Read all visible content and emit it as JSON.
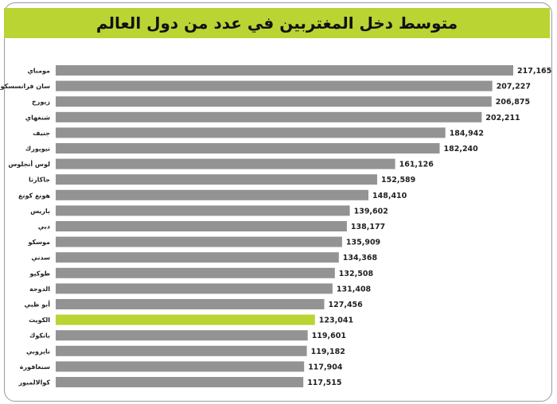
{
  "title": "متوسط دخل المغتربين في عدد من دول العالم",
  "colors": {
    "bar": "#939393",
    "highlight": "#b9d433",
    "title_bar": "#b9d433",
    "text": "#222222"
  },
  "chart_data": {
    "type": "bar",
    "orientation": "horizontal",
    "title": "متوسط دخل المغتربين في عدد من دول العالم",
    "xlabel": "",
    "ylabel": "",
    "xlim": [
      0,
      217165
    ],
    "grid": false,
    "legend": "none",
    "highlight_category": "الكويت",
    "categories": [
      "مومباي",
      "سان فرانسسكو",
      "زيورخ",
      "شنغهاي",
      "جنيف",
      "نيويورك",
      "لوس أنجلوس",
      "جاكارتا",
      "هونغ كونغ",
      "باريس",
      "دبي",
      "موسكو",
      "سدني",
      "طوكيو",
      "الدوحة",
      "أبو ظبي",
      "الكويت",
      "بانكوك",
      "نايروبي",
      "سنغافورة",
      "كوالالمبور"
    ],
    "values": [
      217165,
      207227,
      206875,
      202211,
      184942,
      182240,
      161126,
      152589,
      148410,
      139602,
      138177,
      135909,
      134368,
      132508,
      131408,
      127456,
      123041,
      119601,
      119182,
      117904,
      117515
    ],
    "value_labels": [
      "217,165",
      "207,227",
      "206,875",
      "202,211",
      "184,942",
      "182,240",
      "161,126",
      "152,589",
      "148,410",
      "139,602",
      "138,177",
      "135,909",
      "134,368",
      "132,508",
      "131,408",
      "127,456",
      "123,041",
      "119,601",
      "119,182",
      "117,904",
      "117,515"
    ]
  }
}
